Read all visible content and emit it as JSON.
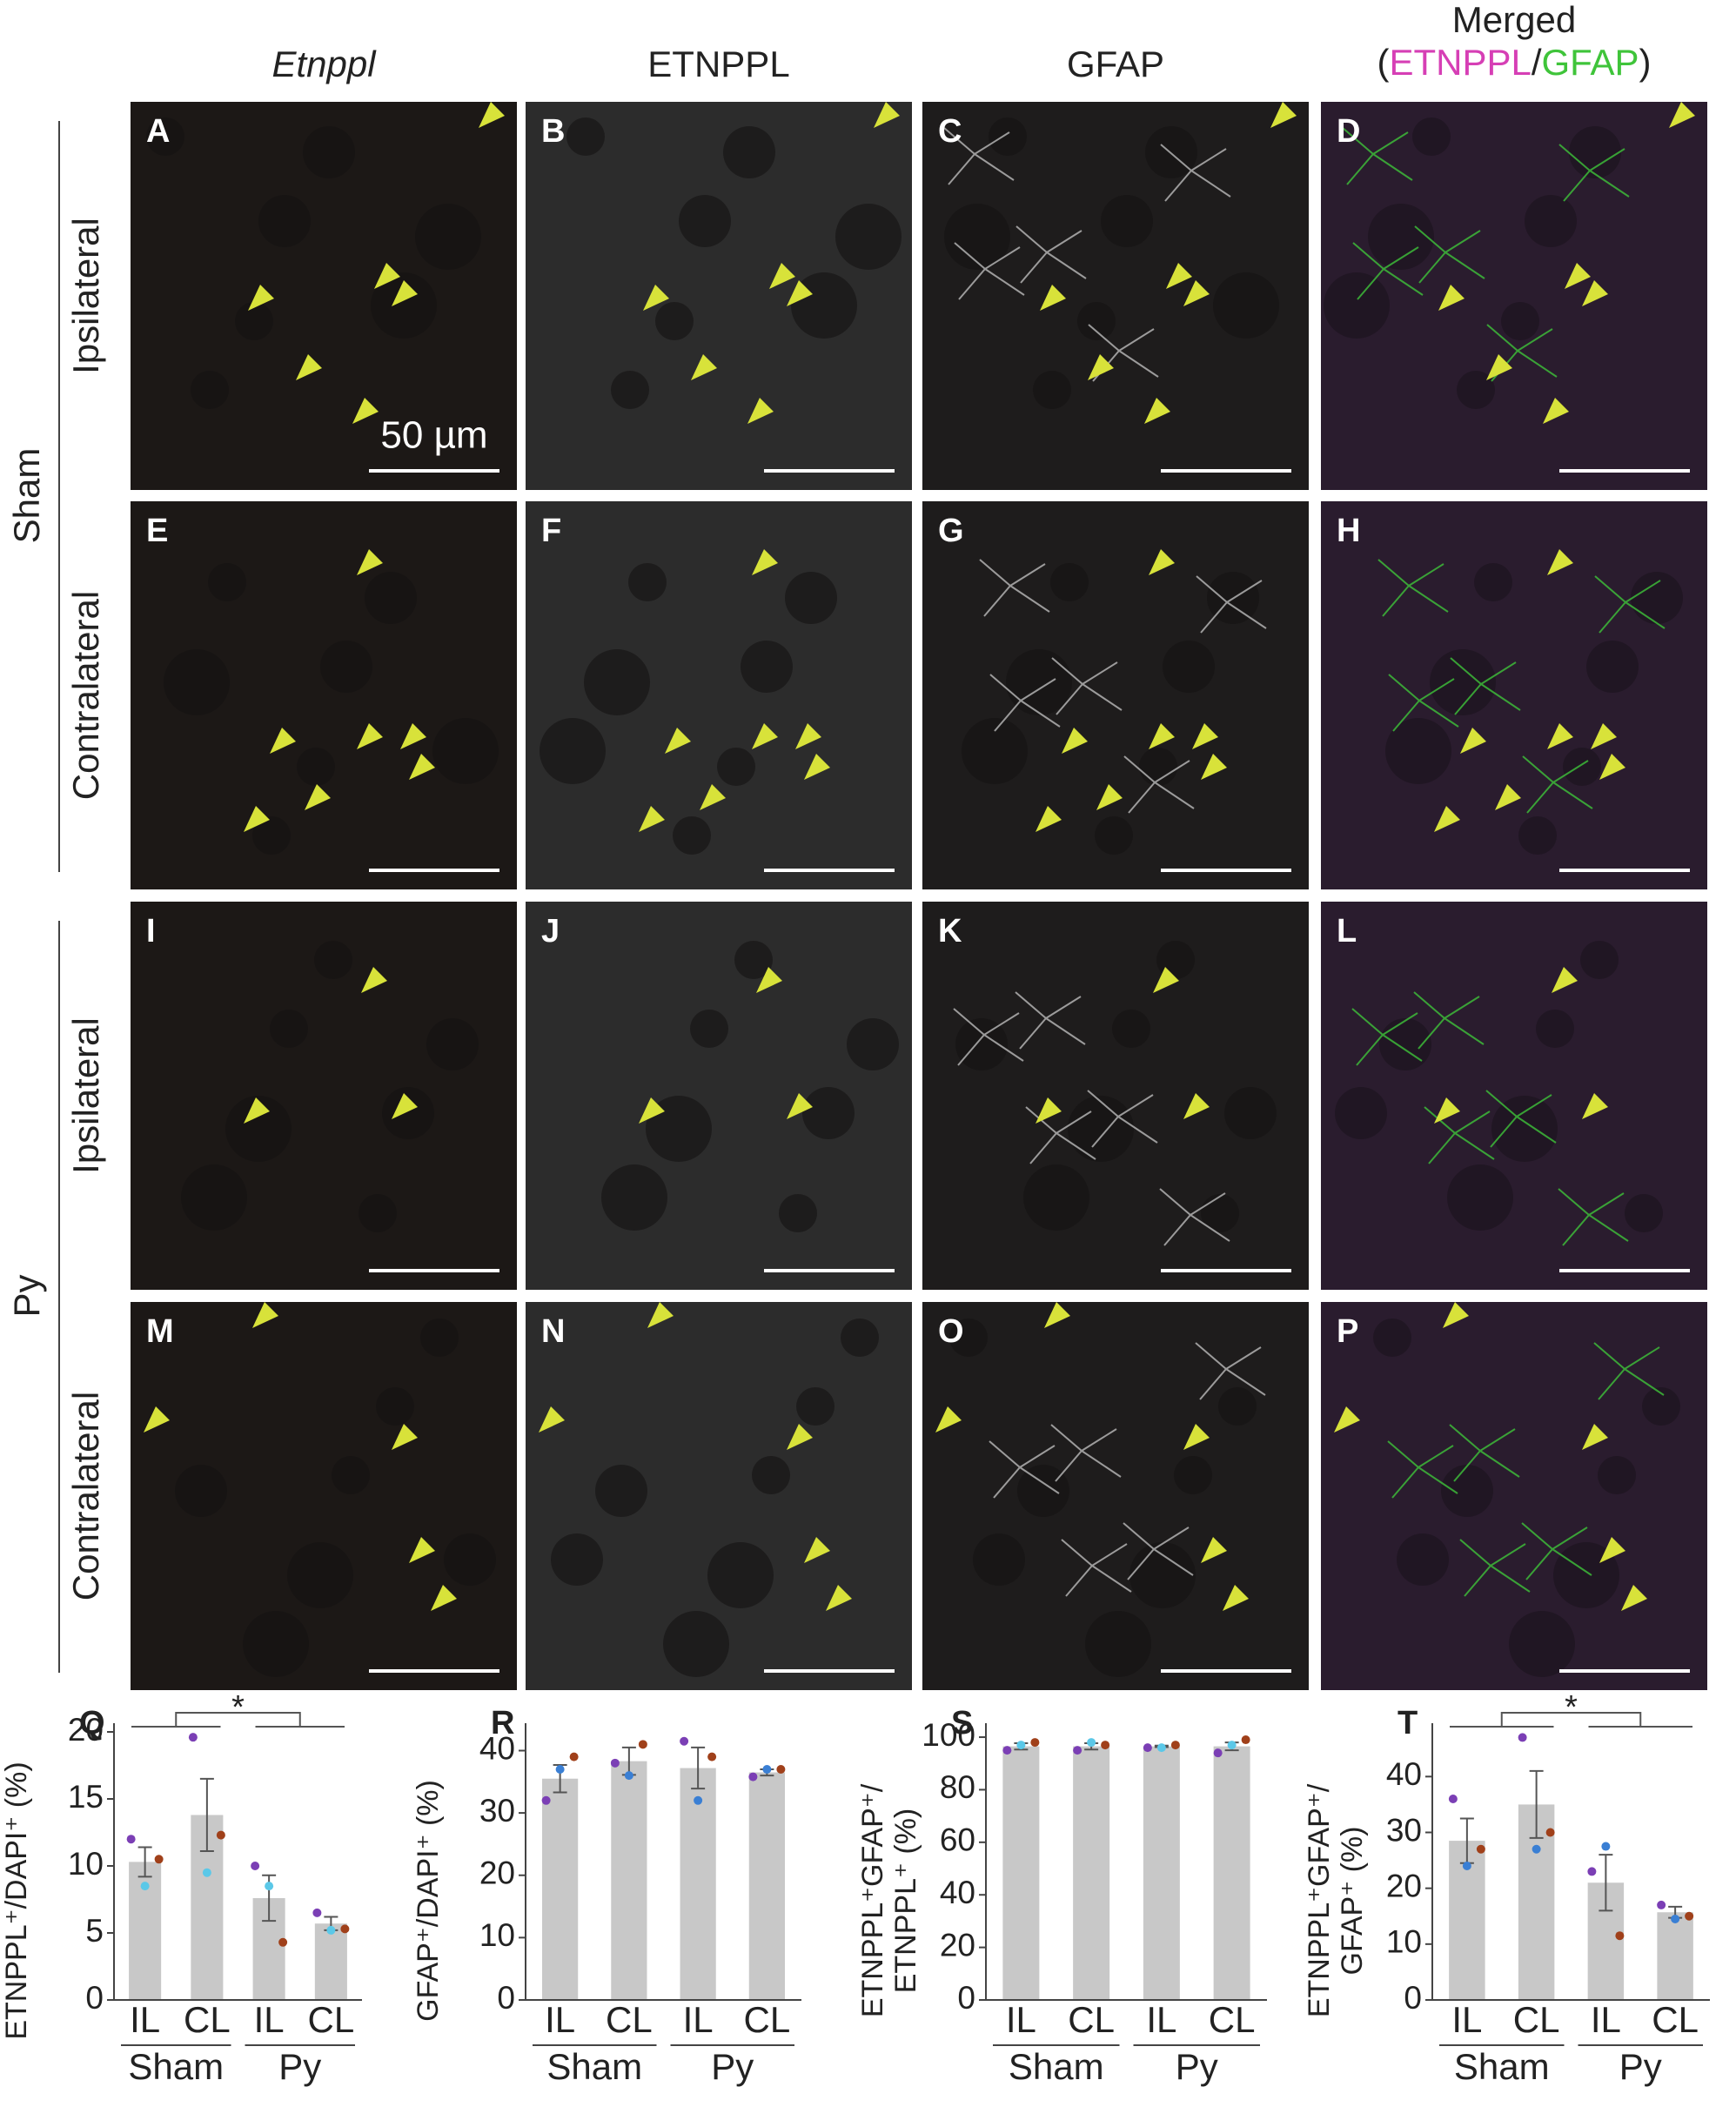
{
  "column_headers": [
    "Etnppl",
    "ETNPPL",
    "GFAP",
    "Merged"
  ],
  "merged_legend": {
    "open": "(",
    "first": "ETNPPL",
    "slash": "/",
    "second": "GFAP",
    "close": ")",
    "first_color": "#d63fb5",
    "second_color": "#3fc43a"
  },
  "groups": [
    {
      "name": "Sham",
      "rows": [
        "Ipsilateral",
        "Contralateral"
      ]
    },
    {
      "name": "Py",
      "rows": [
        "Ipsilateral",
        "Contralateral"
      ]
    }
  ],
  "panel_letters": [
    "A",
    "B",
    "C",
    "D",
    "E",
    "F",
    "G",
    "H",
    "I",
    "J",
    "K",
    "L",
    "M",
    "N",
    "O",
    "P"
  ],
  "scale_bar_label": "50 µm",
  "chart_data": [
    {
      "type": "bar",
      "panel": "Q",
      "ylabel": [
        "ETNPPL⁺/DAPI⁺ (%)"
      ],
      "categories": [
        "IL",
        "CL",
        "IL",
        "CL"
      ],
      "groups": [
        "Sham",
        "Py"
      ],
      "values": [
        10.3,
        13.8,
        7.6,
        5.7
      ],
      "errors": [
        1.1,
        2.7,
        1.7,
        0.5
      ],
      "points": [
        [
          12,
          8.5,
          10.5
        ],
        [
          19.6,
          9.5,
          12.3
        ],
        [
          10,
          8.5,
          4.3
        ],
        [
          6.5,
          5.2,
          5.3
        ]
      ],
      "point_colors": [
        "#7b3fb5",
        "#5bc8e8",
        "#a0401a"
      ],
      "bar_color": "#c8c8c8",
      "ylim": [
        0,
        20
      ],
      "yticks": [
        0,
        5,
        10,
        15,
        20
      ],
      "significance": "*"
    },
    {
      "type": "bar",
      "panel": "R",
      "ylabel": [
        "GFAP⁺/DAPI⁺ (%)"
      ],
      "categories": [
        "IL",
        "CL",
        "IL",
        "CL"
      ],
      "groups": [
        "Sham",
        "Py"
      ],
      "values": [
        35.5,
        38.3,
        37.2,
        36.5
      ],
      "errors": [
        2.2,
        2.2,
        3.3,
        0.5
      ],
      "points": [
        [
          32,
          37,
          39
        ],
        [
          38,
          36,
          41
        ],
        [
          41.5,
          32,
          39
        ],
        [
          35.8,
          37,
          37
        ]
      ],
      "point_colors": [
        "#7b3fb5",
        "#3a7fd4",
        "#a0401a"
      ],
      "bar_color": "#c8c8c8",
      "ylim": [
        0,
        43
      ],
      "yticks": [
        0,
        10,
        20,
        30,
        40
      ]
    },
    {
      "type": "bar",
      "panel": "S",
      "ylabel": [
        "ETNPPL⁺GFAP⁺/",
        "ETNPPL⁺ (%)"
      ],
      "categories": [
        "IL",
        "CL",
        "IL",
        "CL"
      ],
      "groups": [
        "Sham",
        "Py"
      ],
      "values": [
        96.5,
        96.5,
        96.5,
        96.5
      ],
      "errors": [
        1.2,
        1.2,
        0.3,
        1.5
      ],
      "points": [
        [
          95,
          97,
          98
        ],
        [
          95,
          98,
          97
        ],
        [
          96,
          96,
          97
        ],
        [
          94,
          97,
          99
        ]
      ],
      "point_colors": [
        "#7b3fb5",
        "#5bc8e8",
        "#a0401a"
      ],
      "bar_color": "#c8c8c8",
      "ylim": [
        0,
        102
      ],
      "yticks": [
        0,
        20,
        40,
        60,
        80,
        100
      ]
    },
    {
      "type": "bar",
      "panel": "T",
      "ylabel": [
        "ETNPPL⁺GFAP⁺/",
        "GFAP⁺ (%)"
      ],
      "categories": [
        "IL",
        "CL",
        "IL",
        "CL"
      ],
      "groups": [
        "Sham",
        "Py"
      ],
      "values": [
        28.5,
        35,
        21,
        15.7
      ],
      "errors": [
        4,
        6,
        5,
        1
      ],
      "points": [
        [
          36,
          24,
          27
        ],
        [
          47,
          27,
          30
        ],
        [
          23,
          27.5,
          11.5
        ],
        [
          17,
          14.5,
          15
        ]
      ],
      "point_colors": [
        "#7b3fb5",
        "#3a7fd4",
        "#a0401a"
      ],
      "bar_color": "#c8c8c8",
      "ylim": [
        0,
        48
      ],
      "yticks": [
        0,
        10,
        20,
        30,
        40
      ],
      "significance": "*"
    }
  ]
}
